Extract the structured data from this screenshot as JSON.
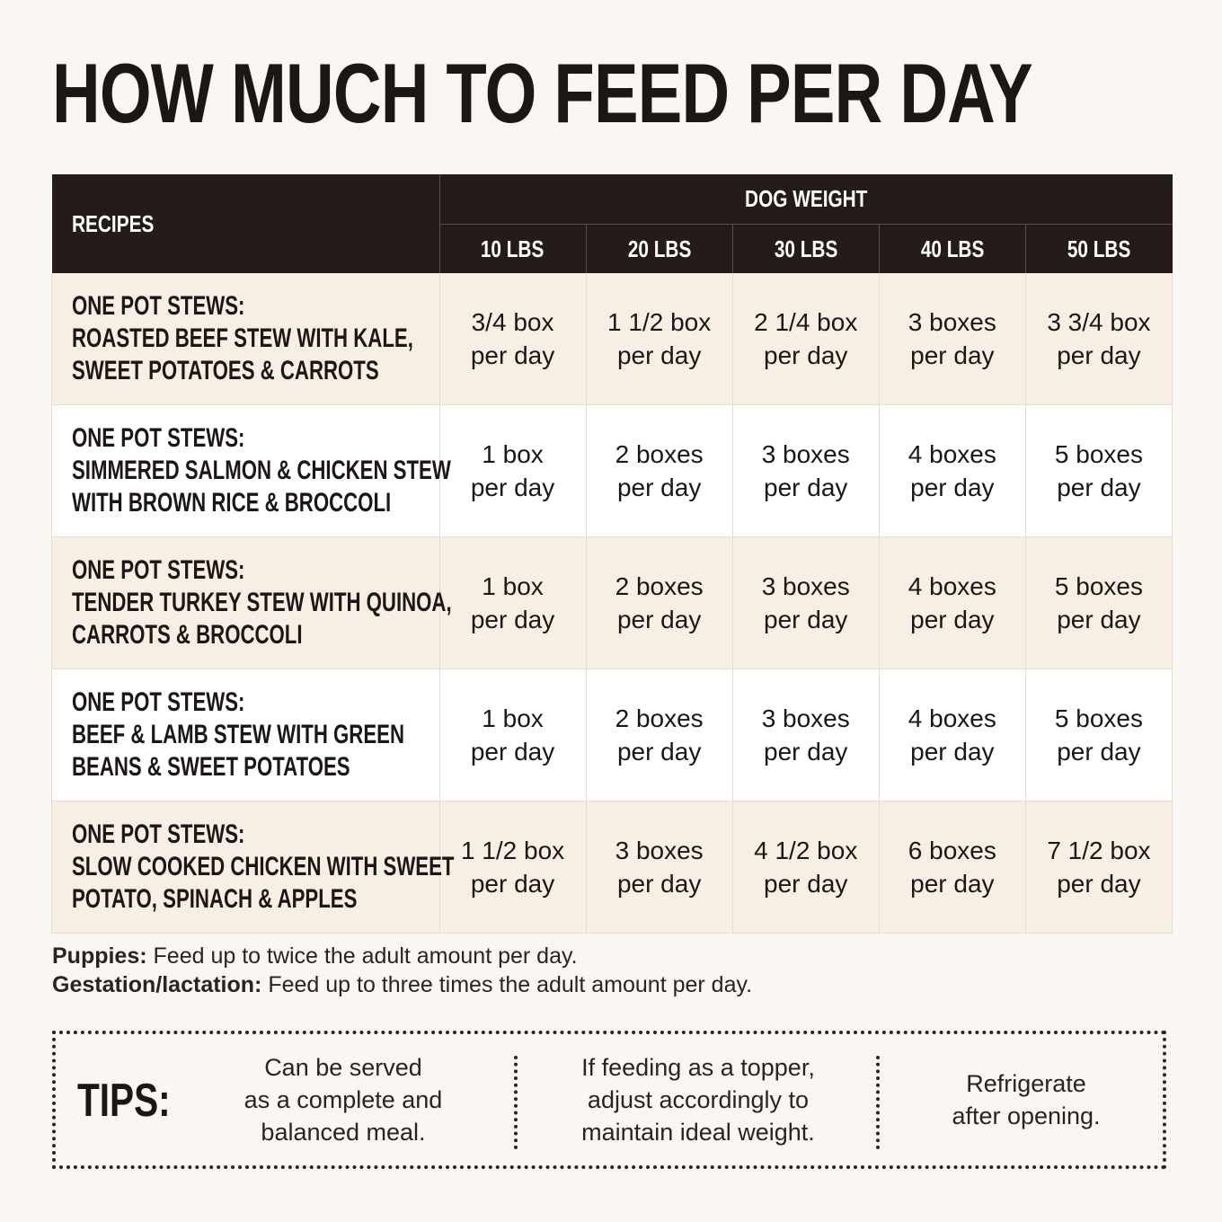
{
  "title": "HOW MUCH TO FEED PER DAY",
  "table": {
    "recipes_header": "RECIPES",
    "weight_header": "DOG WEIGHT",
    "weights": [
      "10 LBS",
      "20 LBS",
      "30 LBS",
      "40 LBS",
      "50 LBS"
    ],
    "rows": [
      {
        "recipe_lines": [
          "ONE POT STEWS:",
          "ROASTED BEEF STEW WITH KALE,",
          "SWEET POTATOES & CARROTS"
        ],
        "values": [
          [
            "3/4 box",
            "per day"
          ],
          [
            "1 1/2 box",
            "per day"
          ],
          [
            "2 1/4 box",
            "per day"
          ],
          [
            "3 boxes",
            "per day"
          ],
          [
            "3 3/4 box",
            "per day"
          ]
        ]
      },
      {
        "recipe_lines": [
          "ONE POT STEWS:",
          "SIMMERED SALMON & CHICKEN STEW",
          "WITH BROWN RICE & BROCCOLI"
        ],
        "values": [
          [
            "1 box",
            "per day"
          ],
          [
            "2 boxes",
            "per day"
          ],
          [
            "3 boxes",
            "per day"
          ],
          [
            "4 boxes",
            "per day"
          ],
          [
            "5 boxes",
            "per day"
          ]
        ]
      },
      {
        "recipe_lines": [
          "ONE POT STEWS:",
          "TENDER TURKEY STEW WITH QUINOA,",
          "CARROTS & BROCCOLI"
        ],
        "values": [
          [
            "1 box",
            "per day"
          ],
          [
            "2 boxes",
            "per day"
          ],
          [
            "3 boxes",
            "per day"
          ],
          [
            "4 boxes",
            "per day"
          ],
          [
            "5 boxes",
            "per day"
          ]
        ]
      },
      {
        "recipe_lines": [
          "ONE POT STEWS:",
          "BEEF & LAMB STEW WITH GREEN",
          "BEANS & SWEET POTATOES"
        ],
        "values": [
          [
            "1 box",
            "per day"
          ],
          [
            "2 boxes",
            "per day"
          ],
          [
            "3 boxes",
            "per day"
          ],
          [
            "4 boxes",
            "per day"
          ],
          [
            "5 boxes",
            "per day"
          ]
        ]
      },
      {
        "recipe_lines": [
          "ONE POT STEWS:",
          "SLOW COOKED CHICKEN WITH SWEET",
          "POTATO, SPINACH & APPLES"
        ],
        "values": [
          [
            "1 1/2 box",
            "per day"
          ],
          [
            "3 boxes",
            "per day"
          ],
          [
            "4 1/2 box",
            "per day"
          ],
          [
            "6 boxes",
            "per day"
          ],
          [
            "7 1/2 box",
            "per day"
          ]
        ]
      }
    ]
  },
  "notes": [
    {
      "label": "Puppies:",
      "text": " Feed up to twice the adult amount per day."
    },
    {
      "label": "Gestation/lactation:",
      "text": " Feed up to three times the adult amount per day."
    }
  ],
  "tips": {
    "label": "TIPS:",
    "items": [
      [
        "Can be served",
        "as a complete and",
        "balanced meal."
      ],
      [
        "If feeding as a topper,",
        "adjust accordingly to",
        "maintain ideal weight."
      ],
      [
        "Refrigerate",
        "after opening."
      ]
    ]
  },
  "colors": {
    "background": "#faf7f2",
    "header": "#251c1a",
    "shaded_row": "#f8efe4",
    "plain_row": "#ffffff"
  }
}
